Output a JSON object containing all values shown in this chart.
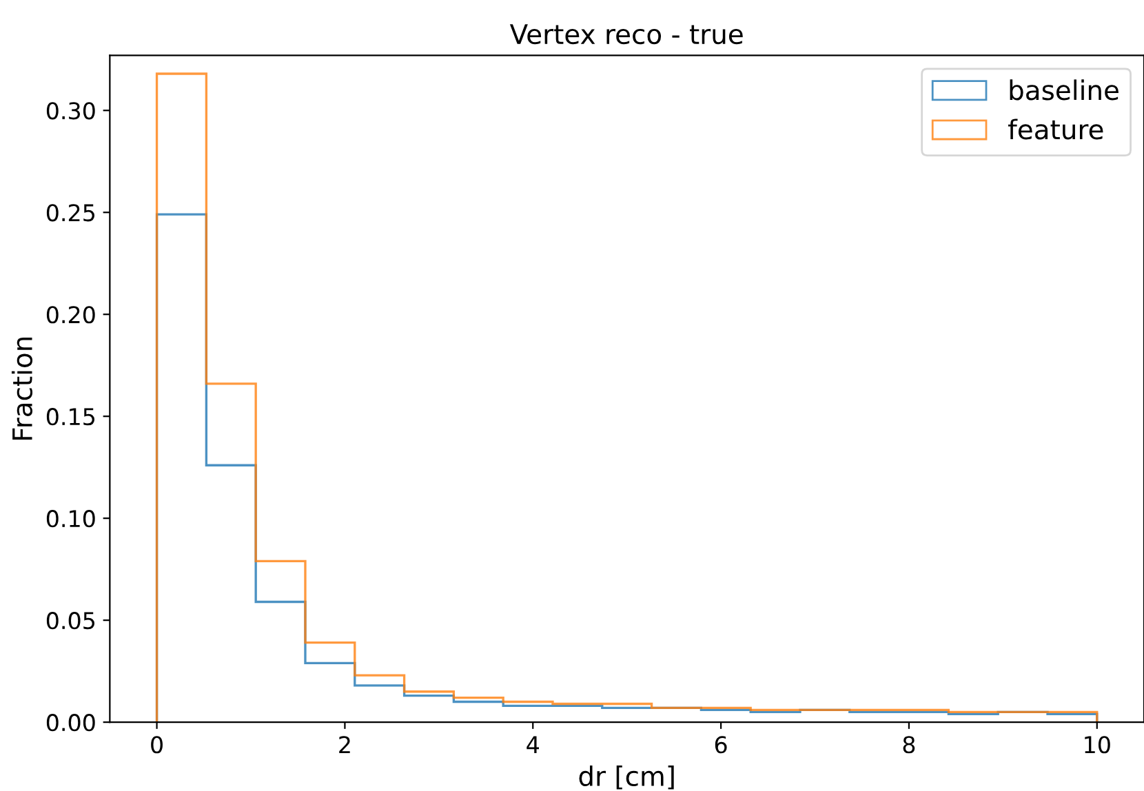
{
  "chart_data": {
    "type": "histogram",
    "title": "Vertex reco - true",
    "xlabel": "dr [cm]",
    "ylabel": "Fraction",
    "bins": [
      0,
      0.5263,
      1.0526,
      1.5789,
      2.1053,
      2.6316,
      3.1579,
      3.6842,
      4.2105,
      4.7368,
      5.2632,
      5.7895,
      6.3158,
      6.8421,
      7.3684,
      7.8947,
      8.4211,
      8.9474,
      9.4737,
      10
    ],
    "series": [
      {
        "name": "baseline",
        "color": "#1f77b4",
        "values": [
          0.249,
          0.126,
          0.059,
          0.029,
          0.018,
          0.013,
          0.01,
          0.008,
          0.008,
          0.007,
          0.007,
          0.006,
          0.005,
          0.006,
          0.005,
          0.005,
          0.004,
          0.005,
          0.004
        ]
      },
      {
        "name": "feature",
        "color": "#ff7f0e",
        "values": [
          0.318,
          0.166,
          0.079,
          0.039,
          0.023,
          0.015,
          0.012,
          0.01,
          0.009,
          0.009,
          0.007,
          0.007,
          0.006,
          0.006,
          0.006,
          0.006,
          0.005,
          0.005,
          0.005
        ]
      }
    ],
    "xlim": [
      -0.5,
      10.5
    ],
    "ylim": [
      0,
      0.327
    ],
    "xticks": [
      0,
      2,
      4,
      6,
      8,
      10
    ],
    "yticks": [
      {
        "value": 0,
        "label": "0.00"
      },
      {
        "value": 0.05,
        "label": "0.05"
      },
      {
        "value": 0.1,
        "label": "0.10"
      },
      {
        "value": 0.15,
        "label": "0.15"
      },
      {
        "value": 0.2,
        "label": "0.20"
      },
      {
        "value": 0.25,
        "label": "0.25"
      },
      {
        "value": 0.3,
        "label": "0.30"
      }
    ],
    "legend": "top right",
    "grid": false
  }
}
